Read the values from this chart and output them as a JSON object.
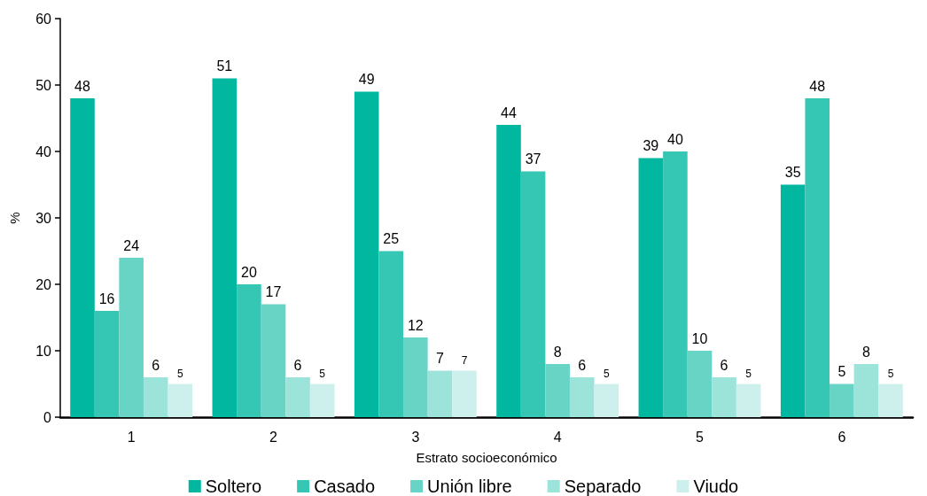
{
  "chart_data": {
    "type": "bar",
    "xlabel": "Estrato socioeconómico",
    "ylabel": "%",
    "categories": [
      "1",
      "2",
      "3",
      "4",
      "5",
      "6"
    ],
    "series": [
      {
        "name": "Soltero",
        "color": "#01b7a0",
        "values": [
          48,
          51,
          49,
          44,
          39,
          35
        ]
      },
      {
        "name": "Casado",
        "color": "#35c6b4",
        "values": [
          16,
          20,
          25,
          37,
          40,
          48
        ]
      },
      {
        "name": "Unión libre",
        "color": "#67d4c6",
        "values": [
          24,
          17,
          12,
          8,
          10,
          5
        ]
      },
      {
        "name": "Separado",
        "color": "#9ce3da",
        "values": [
          6,
          6,
          7,
          6,
          6,
          8
        ]
      },
      {
        "name": "Viudo",
        "color": "#cdf0ec",
        "values": [
          5,
          5,
          7,
          5,
          5,
          5
        ]
      }
    ],
    "ylim": [
      0,
      60
    ],
    "yticks": [
      0,
      10,
      20,
      30,
      40,
      50,
      60
    ],
    "grid": false,
    "legend": "bottom",
    "data_labels": true
  }
}
